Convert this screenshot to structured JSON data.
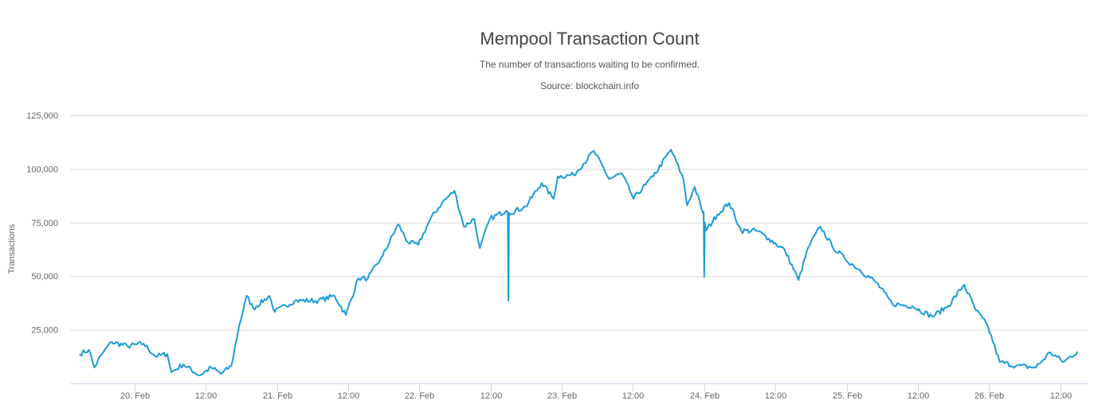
{
  "chart_data": {
    "type": "line",
    "title": "Mempool Transaction Count",
    "subtitle": "The number of transactions waiting to be confirmed.",
    "source": "Source: blockchain.info",
    "xlabel": "",
    "ylabel": "Transactions",
    "ylim": [
      0,
      125000
    ],
    "yticks": [
      25000,
      50000,
      75000,
      100000,
      125000
    ],
    "ytick_labels": [
      "25,000",
      "50,000",
      "75,000",
      "100,000",
      "125,000"
    ],
    "x_unit": "hours since 20 Feb 00:00",
    "xlim": [
      -12.5,
      159.5
    ],
    "xticks": [
      0,
      12,
      24,
      36,
      48,
      60,
      72,
      84,
      96,
      108,
      120,
      132,
      144,
      156
    ],
    "xtick_labels": [
      "20. Feb",
      "12:00",
      "21. Feb",
      "12:00",
      "22. Feb",
      "12:00",
      "23. Feb",
      "12:00",
      "24. Feb",
      "12:00",
      "25. Feb",
      "12:00",
      "26. Feb",
      "12:00"
    ],
    "grid": true,
    "legend": "none",
    "color": "#1a9bd7",
    "series": [
      {
        "name": "Transactions",
        "x": [
          -9.3,
          -7.7,
          -6.8,
          -5.5,
          -3.9,
          -1.2,
          1.5,
          3.5,
          5.5,
          6.2,
          8.2,
          10.9,
          12.9,
          14.6,
          16.3,
          17.6,
          18.9,
          20.0,
          22.7,
          23.6,
          27.0,
          31.0,
          33.7,
          35.6,
          37.7,
          39.3,
          41.8,
          44.4,
          46.1,
          47.8,
          49.8,
          51.8,
          53.9,
          55.5,
          57.2,
          58.2,
          59.9,
          62.6,
          62.9,
          63.0,
          63.1,
          65.9,
          68.6,
          70.6,
          71.3,
          74.0,
          77.4,
          80.0,
          82.1,
          84.1,
          86.1,
          87.4,
          90.4,
          92.5,
          93.1,
          94.4,
          95.8,
          95.9,
          96.0,
          96.1,
          96.3,
          98.2,
          100.2,
          102.2,
          104.9,
          106.9,
          109.6,
          111.9,
          113.6,
          115.6,
          117.6,
          119.7,
          122.3,
          125.0,
          127.7,
          131.1,
          134.4,
          137.1,
          139.8,
          141.8,
          143.8,
          145.8,
          148.5,
          151.9,
          154.3,
          156.6,
          158.9
        ],
        "values": [
          13700,
          15600,
          7400,
          13700,
          19300,
          17400,
          18500,
          12600,
          13700,
          5200,
          8900,
          3700,
          7400,
          4500,
          8200,
          26700,
          40800,
          34900,
          40800,
          33400,
          38600,
          38600,
          40800,
          31900,
          49000,
          49000,
          59400,
          74200,
          65700,
          64600,
          76400,
          84200,
          89800,
          73100,
          76800,
          63100,
          76800,
          80500,
          80000,
          38600,
          79400,
          82400,
          93500,
          86100,
          96500,
          97200,
          108300,
          95300,
          97900,
          86100,
          92700,
          96500,
          109000,
          95300,
          83100,
          91600,
          79400,
          80000,
          49700,
          75000,
          71200,
          78700,
          84200,
          71200,
          71200,
          67500,
          62000,
          48200,
          63800,
          73100,
          63800,
          58200,
          52700,
          47100,
          37100,
          36000,
          31200,
          36000,
          46000,
          34100,
          26700,
          10000,
          8200,
          7400,
          14500,
          10000,
          14800
        ]
      }
    ]
  }
}
